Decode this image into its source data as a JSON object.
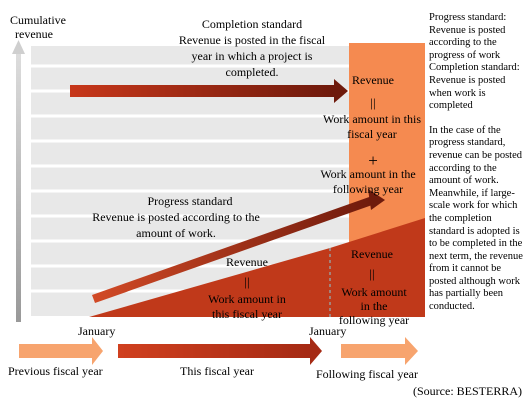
{
  "axis": {
    "ylabel_line1": "Cumulative",
    "ylabel_line2": "revenue"
  },
  "completion": {
    "line1": "Completion standard",
    "line2": "Revenue is posted in the fiscal",
    "line3": "year in which a project is",
    "line4": "completed."
  },
  "progress": {
    "line1": "Progress standard",
    "line2": "Revenue is posted according to the",
    "line3": "amount of work."
  },
  "column": {
    "revenue": "Revenue",
    "equals": "||",
    "this_line1": "Work amount in this",
    "this_line2": "fiscal year",
    "plus": "+",
    "following_line1": "Work amount in the",
    "following_line2": "following year"
  },
  "triangle_left": {
    "revenue": "Revenue",
    "equals": "||",
    "line1": "Work amount in",
    "line2": "this fiscal year"
  },
  "triangle_right": {
    "revenue": "Revenue",
    "equals": "||",
    "line1": "Work amount",
    "line2": "in the",
    "line3": "following year"
  },
  "timeline": {
    "january_1": "January",
    "january_2": "January",
    "previous": "Previous fiscal year",
    "this": "This fiscal year",
    "following": "Following fiscal year"
  },
  "notes": {
    "note1": "Progress standard: Revenue is posted according to the progress of work Completion standard: Revenue is posted when work is completed",
    "note2": "In the case of the progress standard, revenue can be posted according to the amount of work. Meanwhile, if large-scale work for which the completion standard is adopted is to be completed in the next term, the revenue from it cannot be posted although work has partially been conducted."
  },
  "source": "(Source: BESTERRA)",
  "colors": {
    "dark_red": "#c0391a",
    "orange": "#f58a50",
    "light_orange": "#f7a46e",
    "grid_bg": "#e6e6e6",
    "text": "#000000"
  }
}
